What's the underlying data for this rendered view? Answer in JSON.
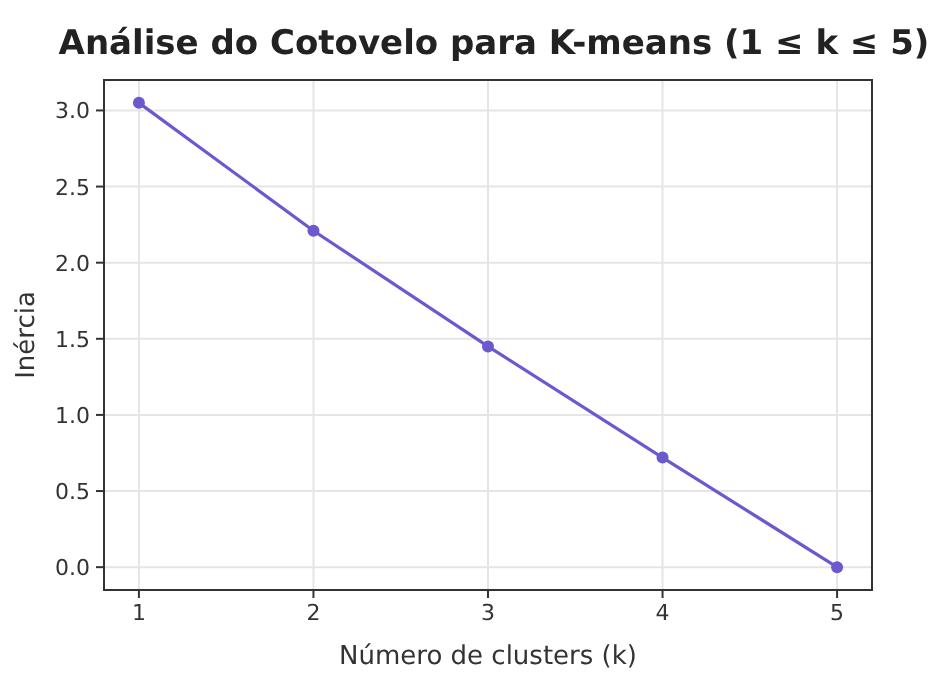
{
  "chart_data": {
    "type": "line",
    "title": "Análise do Cotovelo para K-means (1 ≤ k ≤ 5)",
    "xlabel": "Número de clusters (k)",
    "ylabel": "Inércia",
    "x": [
      1,
      2,
      3,
      4,
      5
    ],
    "series": [
      {
        "color": "#6a5acd",
        "values": [
          3.05,
          2.21,
          1.45,
          0.72,
          0.0
        ]
      }
    ],
    "xlim": [
      0.8,
      5.2
    ],
    "xticks": [
      1,
      2,
      3,
      4,
      5
    ],
    "ylim": [
      -0.15,
      3.2
    ],
    "yticks": [
      {
        "value": 0,
        "label": "0.0"
      },
      {
        "value": 0.5,
        "label": "0.5"
      },
      {
        "value": 1,
        "label": "1.0"
      },
      {
        "value": 1.5,
        "label": "1.5"
      },
      {
        "value": 2,
        "label": "2.0"
      },
      {
        "value": 2.5,
        "label": "2.5"
      },
      {
        "value": 3,
        "label": "3.0"
      }
    ],
    "grid": true,
    "marker": "circle",
    "line_style": "solid"
  }
}
